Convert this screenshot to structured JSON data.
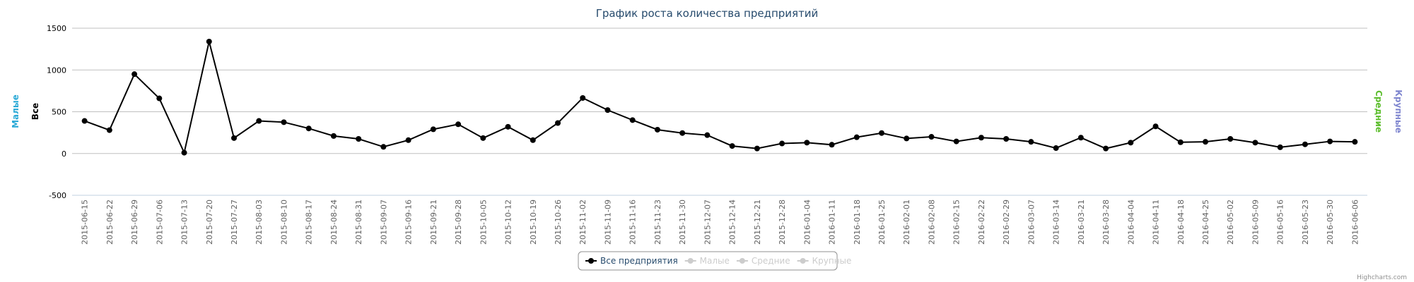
{
  "chart_data": {
    "type": "line",
    "title": "График роста количества предприятий",
    "categories": [
      "2015-06-15",
      "2015-06-22",
      "2015-06-29",
      "2015-07-06",
      "2015-07-13",
      "2015-07-20",
      "2015-07-27",
      "2015-08-03",
      "2015-08-10",
      "2015-08-17",
      "2015-08-24",
      "2015-08-31",
      "2015-09-07",
      "2015-09-16",
      "2015-09-21",
      "2015-09-28",
      "2015-10-05",
      "2015-10-12",
      "2015-10-19",
      "2015-10-26",
      "2015-11-02",
      "2015-11-09",
      "2015-11-16",
      "2015-11-23",
      "2015-11-30",
      "2015-12-07",
      "2015-12-14",
      "2015-12-21",
      "2015-12-28",
      "2016-01-04",
      "2016-01-11",
      "2016-01-18",
      "2016-01-25",
      "2016-02-01",
      "2016-02-08",
      "2016-02-15",
      "2016-02-22",
      "2016-02-29",
      "2016-03-07",
      "2016-03-14",
      "2016-03-21",
      "2016-03-28",
      "2016-04-04",
      "2016-04-11",
      "2016-04-18",
      "2016-04-25",
      "2016-05-02",
      "2016-05-09",
      "2016-05-16",
      "2016-05-23",
      "2016-05-30",
      "2016-06-06"
    ],
    "series": [
      {
        "name": "Все предприятия",
        "color": "#000000",
        "values": [
          390,
          280,
          950,
          660,
          10,
          1340,
          185,
          390,
          375,
          300,
          210,
          175,
          80,
          160,
          290,
          350,
          185,
          320,
          160,
          365,
          665,
          520,
          400,
          285,
          245,
          220,
          90,
          60,
          120,
          130,
          105,
          195,
          245,
          180,
          200,
          145,
          190,
          175,
          140,
          65,
          190,
          60,
          130,
          325,
          135,
          140,
          175,
          130,
          75,
          110,
          145,
          140
        ]
      },
      {
        "name": "Малые",
        "visible": false
      },
      {
        "name": "Средние",
        "visible": false
      },
      {
        "name": "Крупные",
        "visible": false
      }
    ],
    "y_axis_titles": [
      {
        "text": "Малые",
        "color": "#2aa9d6",
        "side": "left"
      },
      {
        "text": "Все",
        "color": "#000000",
        "side": "left"
      },
      {
        "text": "Средние",
        "color": "#5bbd2b",
        "side": "right"
      },
      {
        "text": "Крупные",
        "color": "#7f86cf",
        "side": "right"
      }
    ],
    "ylim": [
      -500,
      1500
    ],
    "yticks": [
      -500,
      0,
      500,
      1000,
      1500
    ],
    "grid": true,
    "credits": "Highcharts.com"
  }
}
